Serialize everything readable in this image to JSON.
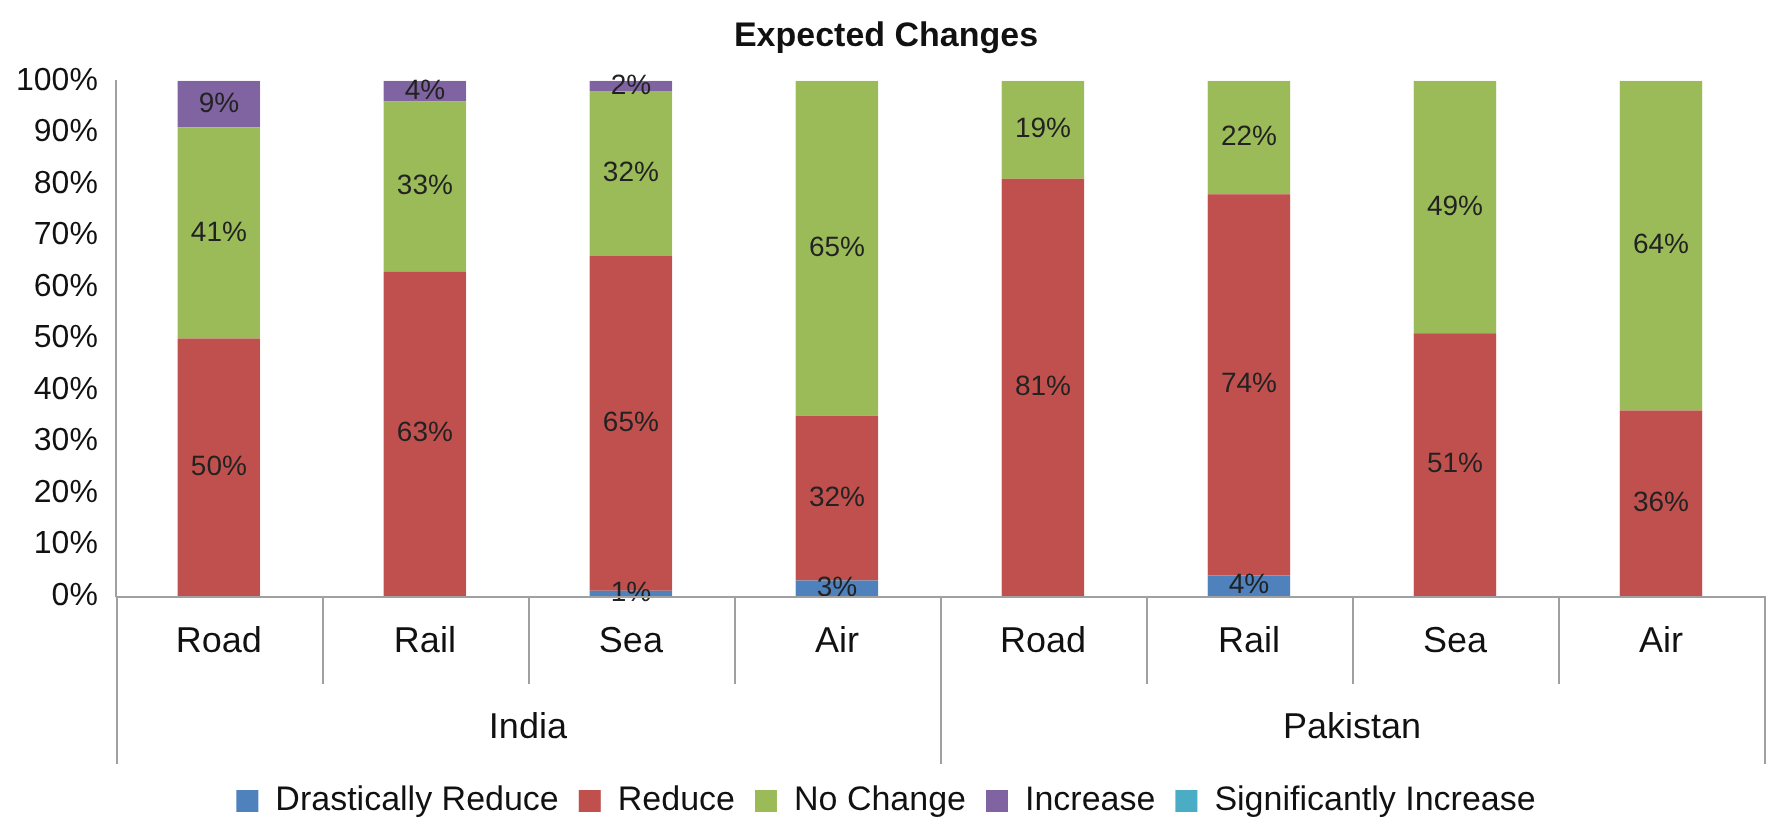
{
  "chart_data": {
    "type": "bar",
    "title": "Expected Changes",
    "stacked": true,
    "legend": "bottom",
    "grid": false,
    "categories": [
      "Road",
      "Rail",
      "Sea",
      "Air",
      "Road",
      "Rail",
      "Sea",
      "Air"
    ],
    "annotations": [
      "India",
      "Pakistan"
    ],
    "ylim": [
      0,
      100
    ],
    "yticks": [
      {
        "value": 0,
        "label": "0%"
      },
      {
        "value": 10,
        "label": "10%"
      },
      {
        "value": 20,
        "label": "20%"
      },
      {
        "value": 30,
        "label": "30%"
      },
      {
        "value": 40,
        "label": "40%"
      },
      {
        "value": 50,
        "label": "50%"
      },
      {
        "value": 60,
        "label": "60%"
      },
      {
        "value": 70,
        "label": "70%"
      },
      {
        "value": 80,
        "label": "80%"
      },
      {
        "value": 90,
        "label": "90%"
      },
      {
        "value": 100,
        "label": "100%"
      }
    ],
    "series": [
      {
        "name": "Drastically Reduce",
        "color": "#4f81bd",
        "values": [
          0,
          0,
          1,
          3,
          0,
          4,
          0,
          0
        ],
        "value_labels": [
          null,
          null,
          "1%",
          "3%",
          null,
          "4%",
          null,
          null
        ]
      },
      {
        "name": "Reduce",
        "color": "#c0504d",
        "values": [
          50,
          63,
          65,
          32,
          81,
          74,
          51,
          36
        ],
        "value_labels": [
          "50%",
          "63%",
          "65%",
          "32%",
          "81%",
          "74%",
          "51%",
          "36%"
        ]
      },
      {
        "name": "No Change",
        "color": "#9bbb59",
        "values": [
          41,
          33,
          32,
          65,
          19,
          22,
          49,
          64
        ],
        "value_labels": [
          "41%",
          "33%",
          "32%",
          "65%",
          "19%",
          "22%",
          "49%",
          "64%"
        ]
      },
      {
        "name": "Increase",
        "color": "#8064a2",
        "values": [
          9,
          4,
          2,
          0,
          0,
          0,
          0,
          0
        ],
        "value_labels": [
          "9%",
          "4%",
          "2%",
          null,
          null,
          null,
          null,
          null
        ]
      },
      {
        "name": "Significantly Increase",
        "color": "#4bacc6",
        "values": [
          0,
          0,
          0,
          0,
          0,
          0,
          0,
          0
        ],
        "value_labels": [
          null,
          null,
          null,
          null,
          null,
          null,
          null,
          null
        ]
      }
    ]
  }
}
